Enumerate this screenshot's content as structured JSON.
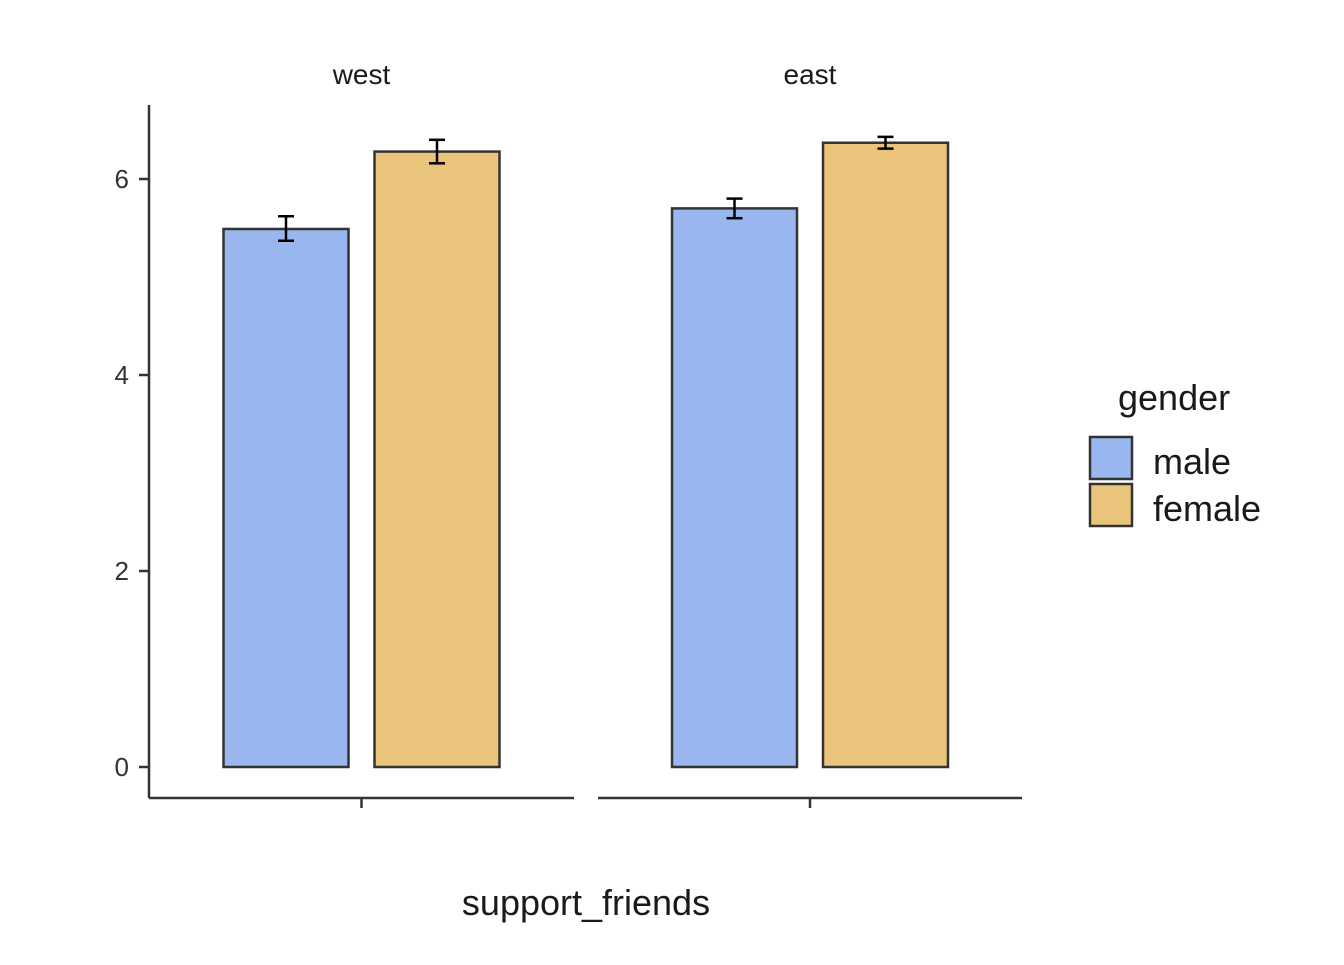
{
  "chart_data": {
    "type": "bar",
    "facet_by": "region",
    "facets": [
      "west",
      "east"
    ],
    "xlabel": "support_friends",
    "ylabel": "",
    "ylim": [
      0,
      6.75
    ],
    "yticks": [
      0,
      2,
      4,
      6
    ],
    "legend": {
      "title": "gender",
      "position": "right",
      "entries": [
        "male",
        "female"
      ]
    },
    "series": [
      {
        "name": "male",
        "color": "#99b7ee",
        "values": [
          5.49,
          5.7
        ],
        "error_low": [
          5.37,
          5.6
        ],
        "error_high": [
          5.62,
          5.8
        ]
      },
      {
        "name": "female",
        "color": "#ebc47b",
        "values": [
          6.28,
          6.37
        ],
        "error_low": [
          6.16,
          6.31
        ],
        "error_high": [
          6.4,
          6.43
        ]
      }
    ],
    "grid": false
  }
}
